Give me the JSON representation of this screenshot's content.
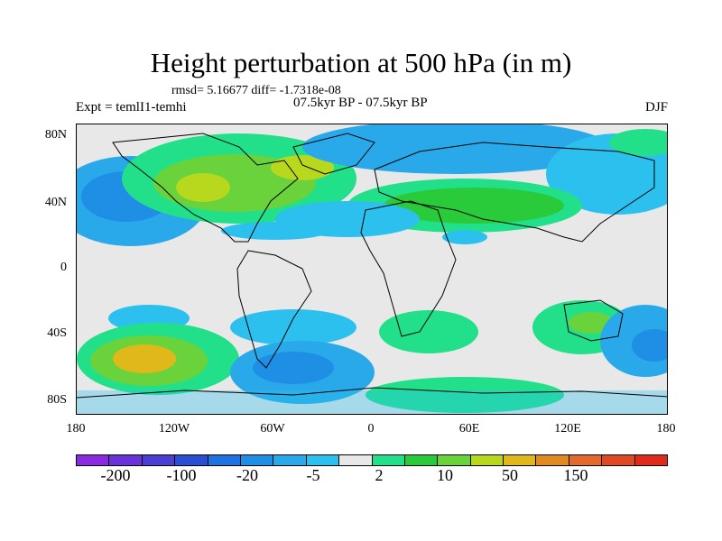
{
  "title": "Height perturbation at 500 hPa (in m)",
  "stats": "rmsd= 5.16677 diff= -1.7318e-08",
  "left_string": "Expt = temlI1-temhi",
  "center_string": "07.5kyr BP - 07.5kyr BP",
  "right_string": "DJF",
  "y_labels": [
    "80N",
    "40N",
    "0",
    "40S",
    "80S"
  ],
  "x_labels": [
    "180",
    "120W",
    "60W",
    "0",
    "60E",
    "120E",
    "180"
  ],
  "colorbar": {
    "colors": [
      "#8a2be2",
      "#6a33d9",
      "#4a3fd0",
      "#2a4fd0",
      "#1e73e0",
      "#1f8fe6",
      "#29a9ea",
      "#2bc0ee",
      "#e8e8e8",
      "#22e08a",
      "#2acb3a",
      "#6ad23a",
      "#b8d81e",
      "#e0b81a",
      "#e28a22",
      "#e26a2a",
      "#e04a22",
      "#e02a1a"
    ],
    "labels": [
      "-200",
      "-100",
      "-20",
      "-5",
      "2",
      "10",
      "50",
      "150"
    ]
  },
  "fields": {
    "map_background": "#e8e8e8",
    "coastline_color": "#000000"
  }
}
